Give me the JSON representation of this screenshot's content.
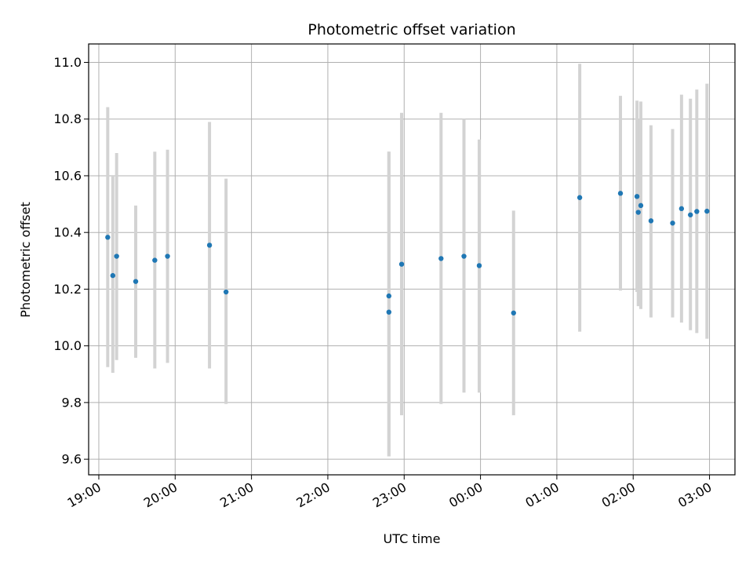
{
  "chart_data": {
    "type": "scatter",
    "title": "Photometric offset variation",
    "xlabel": "UTC time",
    "ylabel": "Photometric offset",
    "x_tick_labels": [
      "19:00",
      "20:00",
      "21:00",
      "22:00",
      "23:00",
      "00:00",
      "01:00",
      "02:00",
      "03:00"
    ],
    "y_tick_labels": [
      "9.6",
      "9.8",
      "10.0",
      "10.2",
      "10.4",
      "10.6",
      "10.8",
      "11.0"
    ],
    "y_ticks": [
      9.6,
      9.8,
      10.0,
      10.2,
      10.4,
      10.6,
      10.8,
      11.0
    ],
    "xlim": [
      "18:52",
      "03:20"
    ],
    "ylim": [
      9.545,
      11.065
    ],
    "grid": true,
    "colors": {
      "points": "#1f77b4",
      "error_bars": "#d3d3d3",
      "grid": "#b0b0b0"
    },
    "points": [
      {
        "x": "19:07",
        "y": 10.383,
        "ylow": 9.925,
        "yhigh": 10.842
      },
      {
        "x": "19:11",
        "y": 10.248,
        "ylow": 9.905,
        "yhigh": 10.6
      },
      {
        "x": "19:14",
        "y": 10.316,
        "ylow": 9.95,
        "yhigh": 10.68
      },
      {
        "x": "19:29",
        "y": 10.227,
        "ylow": 9.958,
        "yhigh": 10.495
      },
      {
        "x": "19:44",
        "y": 10.302,
        "ylow": 9.92,
        "yhigh": 10.685
      },
      {
        "x": "19:54",
        "y": 10.316,
        "ylow": 9.94,
        "yhigh": 10.692
      },
      {
        "x": "20:27",
        "y": 10.355,
        "ylow": 9.92,
        "yhigh": 10.79
      },
      {
        "x": "20:40",
        "y": 10.19,
        "ylow": 9.795,
        "yhigh": 10.59
      },
      {
        "x": "22:48",
        "y": 10.176,
        "ylow": 9.61,
        "yhigh": 10.685
      },
      {
        "x": "22:48",
        "y": 10.119,
        "ylow": 9.61,
        "yhigh": 10.685
      },
      {
        "x": "22:58",
        "y": 10.288,
        "ylow": 9.755,
        "yhigh": 10.822
      },
      {
        "x": "23:29",
        "y": 10.308,
        "ylow": 9.795,
        "yhigh": 10.822
      },
      {
        "x": "23:47",
        "y": 10.316,
        "ylow": 9.835,
        "yhigh": 10.8
      },
      {
        "x": "23:59",
        "y": 10.283,
        "ylow": 9.835,
        "yhigh": 10.728
      },
      {
        "x": "00:26",
        "y": 10.116,
        "ylow": 9.755,
        "yhigh": 10.477
      },
      {
        "x": "01:18",
        "y": 10.523,
        "ylow": 10.05,
        "yhigh": 10.995
      },
      {
        "x": "01:50",
        "y": 10.538,
        "ylow": 10.195,
        "yhigh": 10.882
      },
      {
        "x": "02:03",
        "y": 10.527,
        "ylow": 10.19,
        "yhigh": 10.865
      },
      {
        "x": "02:04",
        "y": 10.471,
        "ylow": 10.14,
        "yhigh": 10.8
      },
      {
        "x": "02:06",
        "y": 10.495,
        "ylow": 10.13,
        "yhigh": 10.862
      },
      {
        "x": "02:14",
        "y": 10.441,
        "ylow": 10.1,
        "yhigh": 10.778
      },
      {
        "x": "02:31",
        "y": 10.433,
        "ylow": 10.1,
        "yhigh": 10.765
      },
      {
        "x": "02:38",
        "y": 10.484,
        "ylow": 10.082,
        "yhigh": 10.886
      },
      {
        "x": "02:45",
        "y": 10.462,
        "ylow": 10.055,
        "yhigh": 10.872
      },
      {
        "x": "02:50",
        "y": 10.474,
        "ylow": 10.045,
        "yhigh": 10.904
      },
      {
        "x": "02:58",
        "y": 10.475,
        "ylow": 10.025,
        "yhigh": 10.925
      }
    ]
  }
}
